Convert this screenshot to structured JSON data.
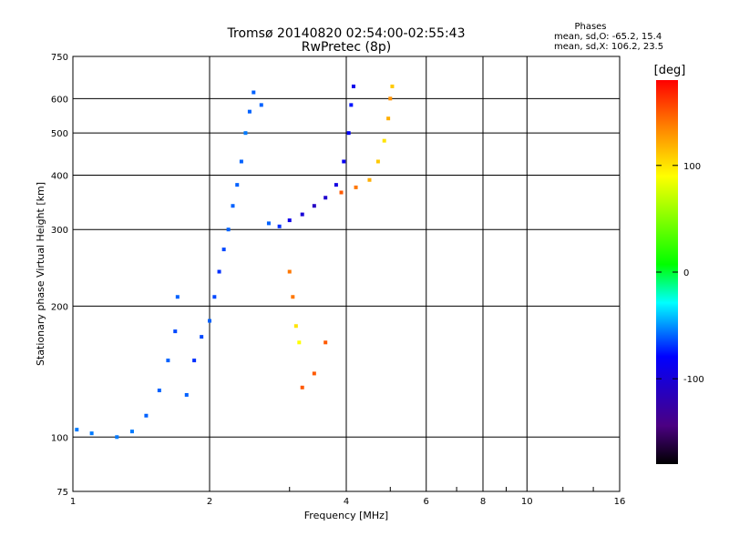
{
  "chart_data": {
    "type": "scatter",
    "title": "Tromsø 20140820 02:54:00-02:55:43",
    "subtitle": "RwPretec (8p)",
    "xlabel": "Frequency [MHz]",
    "ylabel": "Stationary phase Virtual Height [km]",
    "x_scale": "log",
    "y_scale": "log",
    "xlim": [
      1,
      16
    ],
    "ylim": [
      75,
      750
    ],
    "x_ticks": [
      1,
      2,
      4,
      6,
      8,
      10,
      16
    ],
    "y_ticks": [
      75,
      100,
      200,
      300,
      400,
      500,
      600,
      750
    ],
    "grid": true,
    "phases_info": {
      "heading": "Phases",
      "line1": "mean, sd,O: -65.2, 15.4",
      "line2": "mean, sd,X: 106.2, 23.5"
    },
    "colorbar": {
      "label": "[deg]",
      "range": [
        -180,
        180
      ],
      "ticks": [
        100,
        0,
        -100
      ],
      "colormap": "rainbow (black-purple-blue-cyan-green-yellow-red)"
    },
    "series": [
      {
        "values": [
          {
            "x": 1.02,
            "y": 104,
            "phase": -55
          },
          {
            "x": 1.1,
            "y": 102,
            "phase": -55
          },
          {
            "x": 1.25,
            "y": 100,
            "phase": -55
          },
          {
            "x": 1.35,
            "y": 103,
            "phase": -55
          },
          {
            "x": 1.45,
            "y": 112,
            "phase": -60
          },
          {
            "x": 1.55,
            "y": 128,
            "phase": -60
          },
          {
            "x": 1.62,
            "y": 150,
            "phase": -60
          },
          {
            "x": 1.68,
            "y": 175,
            "phase": -65
          },
          {
            "x": 1.7,
            "y": 210,
            "phase": -60
          },
          {
            "x": 1.78,
            "y": 125,
            "phase": -60
          },
          {
            "x": 1.85,
            "y": 150,
            "phase": -70
          },
          {
            "x": 1.92,
            "y": 170,
            "phase": -65
          },
          {
            "x": 2.0,
            "y": 185,
            "phase": -60
          },
          {
            "x": 2.05,
            "y": 210,
            "phase": -65
          },
          {
            "x": 2.1,
            "y": 240,
            "phase": -70
          },
          {
            "x": 2.15,
            "y": 270,
            "phase": -65
          },
          {
            "x": 2.2,
            "y": 300,
            "phase": -60
          },
          {
            "x": 2.25,
            "y": 340,
            "phase": -60
          },
          {
            "x": 2.3,
            "y": 380,
            "phase": -60
          },
          {
            "x": 2.35,
            "y": 430,
            "phase": -60
          },
          {
            "x": 2.4,
            "y": 500,
            "phase": -55
          },
          {
            "x": 2.45,
            "y": 560,
            "phase": -60
          },
          {
            "x": 2.5,
            "y": 620,
            "phase": -60
          },
          {
            "x": 2.6,
            "y": 580,
            "phase": -60
          },
          {
            "x": 2.7,
            "y": 310,
            "phase": -60
          },
          {
            "x": 2.85,
            "y": 305,
            "phase": -70
          },
          {
            "x": 3.0,
            "y": 315,
            "phase": -90
          },
          {
            "x": 3.2,
            "y": 325,
            "phase": -100
          },
          {
            "x": 3.4,
            "y": 340,
            "phase": -110
          },
          {
            "x": 3.6,
            "y": 355,
            "phase": -105
          },
          {
            "x": 3.8,
            "y": 380,
            "phase": -95
          },
          {
            "x": 3.95,
            "y": 430,
            "phase": -85
          },
          {
            "x": 4.05,
            "y": 500,
            "phase": -80
          },
          {
            "x": 4.1,
            "y": 580,
            "phase": -75
          },
          {
            "x": 4.15,
            "y": 640,
            "phase": -90
          }
        ]
      },
      {
        "values": [
          {
            "x": 3.0,
            "y": 240,
            "phase": 140
          },
          {
            "x": 3.05,
            "y": 210,
            "phase": 140
          },
          {
            "x": 3.1,
            "y": 180,
            "phase": 100
          },
          {
            "x": 3.15,
            "y": 165,
            "phase": 90
          },
          {
            "x": 3.2,
            "y": 130,
            "phase": 150
          },
          {
            "x": 3.4,
            "y": 140,
            "phase": 150
          },
          {
            "x": 3.6,
            "y": 165,
            "phase": 150
          },
          {
            "x": 3.9,
            "y": 365,
            "phase": 150
          },
          {
            "x": 4.2,
            "y": 375,
            "phase": 140
          },
          {
            "x": 4.5,
            "y": 390,
            "phase": 120
          },
          {
            "x": 4.7,
            "y": 430,
            "phase": 110
          },
          {
            "x": 4.85,
            "y": 480,
            "phase": 100
          },
          {
            "x": 4.95,
            "y": 540,
            "phase": 120
          },
          {
            "x": 5.0,
            "y": 600,
            "phase": 130
          },
          {
            "x": 5.05,
            "y": 640,
            "phase": 110
          }
        ]
      }
    ]
  }
}
